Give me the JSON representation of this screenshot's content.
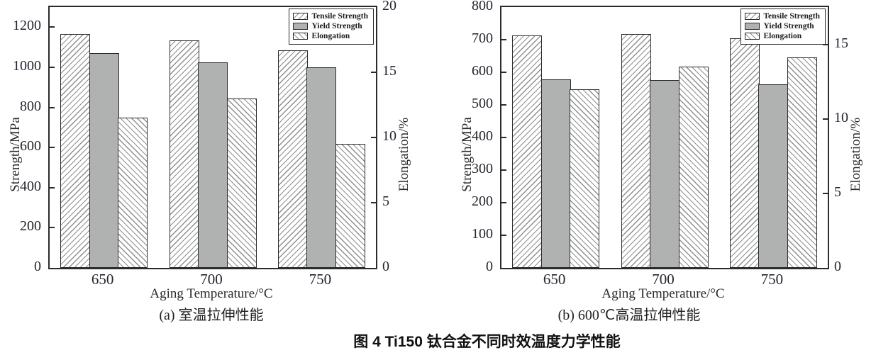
{
  "figure_title": "图 4  Ti150 钛合金不同时效温度力学性能",
  "colors": {
    "bar_gray": "#b0b2b1",
    "hatch_line": "#8f8f8f",
    "border": "#2b2b2b",
    "text": "#24262e"
  },
  "chart_data": [
    {
      "type": "bar",
      "title": "(a) 室温拉伸性能",
      "xlabel": "Aging Temperature/°C",
      "ylabel_left": "Strength/MPa",
      "ylabel_right": "Elongation/%",
      "categories": [
        "650",
        "700",
        "750"
      ],
      "ylim_left": [
        0,
        1300
      ],
      "yticks_left": [
        0,
        200,
        400,
        600,
        800,
        1000,
        1200
      ],
      "ylim_right": [
        0,
        20
      ],
      "yticks_right": [
        0,
        5,
        10,
        15,
        20
      ],
      "grid": false,
      "legend_position": "top-right",
      "legend": [
        "Tensile Strength",
        "Yield Strength",
        "Elongation"
      ],
      "series": [
        {
          "name": "Tensile Strength",
          "axis": "left",
          "style": "hatch-fwd",
          "values": [
            1165,
            1135,
            1085
          ]
        },
        {
          "name": "Yield Strength",
          "axis": "left",
          "style": "solid-gray",
          "values": [
            1070,
            1025,
            1000
          ]
        },
        {
          "name": "Elongation",
          "axis": "right",
          "style": "hatch-bwd",
          "values": [
            11.5,
            13.0,
            9.5
          ]
        }
      ]
    },
    {
      "type": "bar",
      "title": "(b) 600℃高温拉伸性能",
      "xlabel": "Aging Temperature/°C",
      "ylabel_left": "Strength/MPa",
      "ylabel_right": "Elongation/%",
      "categories": [
        "650",
        "700",
        "750"
      ],
      "ylim_left": [
        0,
        800
      ],
      "yticks_left": [
        0,
        100,
        200,
        300,
        400,
        500,
        600,
        700,
        800
      ],
      "ylim_right": [
        0,
        17.5
      ],
      "yticks_right": [
        0,
        5,
        10,
        15
      ],
      "grid": false,
      "legend_position": "top-right",
      "legend": [
        "Tensile Strength",
        "Yield Strength",
        "Elongation"
      ],
      "series": [
        {
          "name": "Tensile Strength",
          "axis": "left",
          "style": "hatch-fwd",
          "values": [
            712,
            718,
            705
          ]
        },
        {
          "name": "Yield Strength",
          "axis": "left",
          "style": "solid-gray",
          "values": [
            578,
            577,
            562
          ]
        },
        {
          "name": "Elongation",
          "axis": "right",
          "style": "hatch-bwd",
          "values": [
            12.0,
            13.5,
            14.1
          ]
        }
      ]
    }
  ]
}
